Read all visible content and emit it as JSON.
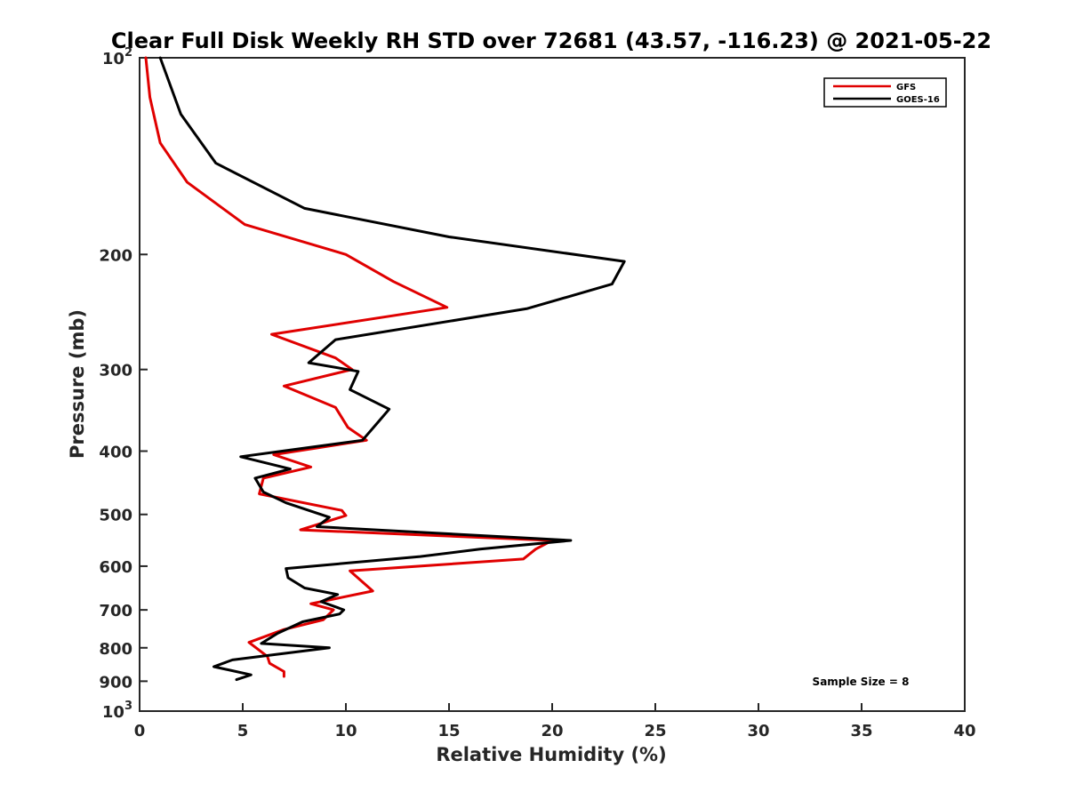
{
  "chart_data": {
    "type": "line",
    "title": "Clear Full Disk Weekly RH STD over 72681 (43.57, -116.23) @ 2021-05-22",
    "xlabel": "Relative Humidity (%)",
    "ylabel": "Pressure (mb)",
    "xlim": [
      0,
      40
    ],
    "ylim": [
      100,
      1000
    ],
    "y_scale": "log",
    "y_reversed": true,
    "grid": false,
    "legend_position": "top-right",
    "x_ticks": [
      "0",
      "5",
      "10",
      "15",
      "20",
      "25",
      "30",
      "35",
      "40"
    ],
    "y_ticks": [
      {
        "value": 100,
        "base": "10",
        "exp": "2"
      },
      {
        "value": 200,
        "base": "200",
        "exp": ""
      },
      {
        "value": 300,
        "base": "300",
        "exp": ""
      },
      {
        "value": 400,
        "base": "400",
        "exp": ""
      },
      {
        "value": 500,
        "base": "500",
        "exp": ""
      },
      {
        "value": 600,
        "base": "600",
        "exp": ""
      },
      {
        "value": 700,
        "base": "700",
        "exp": ""
      },
      {
        "value": 800,
        "base": "800",
        "exp": ""
      },
      {
        "value": 900,
        "base": "900",
        "exp": ""
      },
      {
        "value": 1000,
        "base": "10",
        "exp": "3"
      }
    ],
    "series": [
      {
        "name": "GFS",
        "color": "#e00000",
        "points": [
          [
            0.3,
            100
          ],
          [
            0.5,
            115
          ],
          [
            1.0,
            135
          ],
          [
            2.3,
            155
          ],
          [
            5.1,
            180
          ],
          [
            10.0,
            200
          ],
          [
            12.3,
            220
          ],
          [
            14.9,
            241
          ],
          [
            6.4,
            265
          ],
          [
            9.5,
            288
          ],
          [
            10.3,
            300
          ],
          [
            7.0,
            318
          ],
          [
            9.5,
            343
          ],
          [
            10.1,
            368
          ],
          [
            11.0,
            385
          ],
          [
            6.5,
            405
          ],
          [
            8.3,
            423
          ],
          [
            6.0,
            440
          ],
          [
            5.8,
            465
          ],
          [
            9.8,
            493
          ],
          [
            10.0,
            502
          ],
          [
            7.8,
            528
          ],
          [
            20.0,
            548
          ],
          [
            19.2,
            565
          ],
          [
            18.6,
            585
          ],
          [
            10.2,
            610
          ],
          [
            11.3,
            655
          ],
          [
            8.3,
            685
          ],
          [
            9.4,
            700
          ],
          [
            8.9,
            725
          ],
          [
            7.0,
            750
          ],
          [
            5.3,
            785
          ],
          [
            6.2,
            825
          ],
          [
            6.3,
            845
          ],
          [
            7.0,
            870
          ],
          [
            7.0,
            885
          ]
        ]
      },
      {
        "name": "GOES-16",
        "color": "#000000",
        "points": [
          [
            1.0,
            100
          ],
          [
            2.0,
            122
          ],
          [
            3.7,
            145
          ],
          [
            8.0,
            170
          ],
          [
            15.0,
            188
          ],
          [
            23.5,
            205
          ],
          [
            22.9,
            222
          ],
          [
            18.8,
            242
          ],
          [
            9.5,
            270
          ],
          [
            8.2,
            293
          ],
          [
            10.6,
            302
          ],
          [
            10.2,
            322
          ],
          [
            12.1,
            345
          ],
          [
            11.6,
            360
          ],
          [
            10.8,
            385
          ],
          [
            4.9,
            408
          ],
          [
            7.3,
            426
          ],
          [
            5.6,
            440
          ],
          [
            6.0,
            462
          ],
          [
            7.1,
            480
          ],
          [
            9.2,
            505
          ],
          [
            8.6,
            522
          ],
          [
            20.9,
            548
          ],
          [
            16.5,
            565
          ],
          [
            13.6,
            580
          ],
          [
            7.1,
            605
          ],
          [
            7.2,
            625
          ],
          [
            8.0,
            648
          ],
          [
            9.6,
            663
          ],
          [
            8.8,
            680
          ],
          [
            9.9,
            700
          ],
          [
            9.7,
            710
          ],
          [
            7.9,
            730
          ],
          [
            6.7,
            760
          ],
          [
            5.9,
            788
          ],
          [
            9.2,
            800
          ],
          [
            4.5,
            835
          ],
          [
            3.6,
            855
          ],
          [
            5.4,
            880
          ],
          [
            4.7,
            895
          ]
        ]
      }
    ],
    "annotation": "Sample Size = 8"
  }
}
